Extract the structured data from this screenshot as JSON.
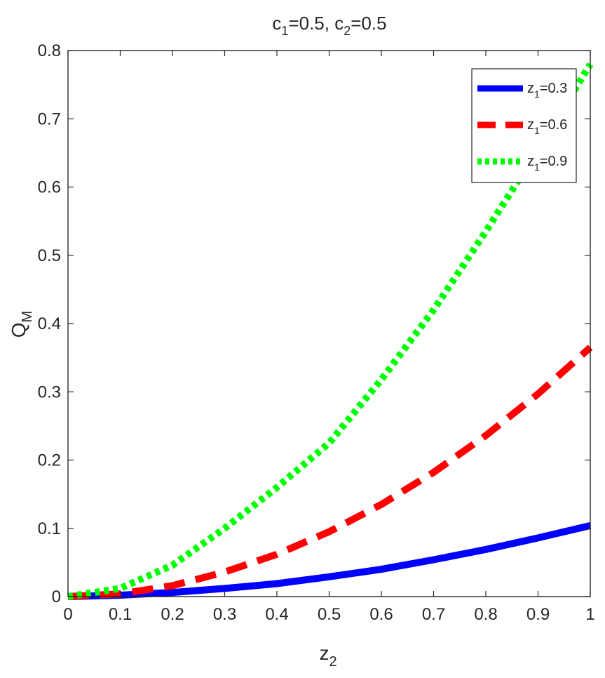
{
  "chart_data": {
    "type": "line",
    "title": {
      "main": "c",
      "s1": "1",
      "mid": "=0.5, c",
      "s2": "2",
      "tail": "=0.5"
    },
    "xlabel": {
      "main": "z",
      "sub": "2"
    },
    "ylabel": {
      "main": "Q",
      "sub": "M"
    },
    "xlim": [
      0,
      1
    ],
    "ylim": [
      0,
      0.8
    ],
    "xticks": [
      "0",
      "0.1",
      "0.2",
      "0.3",
      "0.4",
      "0.5",
      "0.6",
      "0.7",
      "0.8",
      "0.9",
      "1"
    ],
    "yticks": [
      "0",
      "0.1",
      "0.2",
      "0.3",
      "0.4",
      "0.5",
      "0.6",
      "0.7",
      "0.8"
    ],
    "grid": false,
    "legend_position": "top-right",
    "x": [
      0,
      0.1,
      0.2,
      0.3,
      0.4,
      0.5,
      0.6,
      0.7,
      0.8,
      0.9,
      1.0
    ],
    "series": [
      {
        "name": {
          "main": "z",
          "sub": "1",
          "tail": "=0.3"
        },
        "color": "#0000ff",
        "style": "solid",
        "values": [
          0,
          0.002,
          0.006,
          0.012,
          0.019,
          0.029,
          0.04,
          0.054,
          0.069,
          0.086,
          0.104
        ]
      },
      {
        "name": {
          "main": "z",
          "sub": "1",
          "tail": "=0.6"
        },
        "color": "#ff0000",
        "style": "dashed",
        "values": [
          0,
          0.004,
          0.016,
          0.036,
          0.062,
          0.095,
          0.135,
          0.182,
          0.236,
          0.297,
          0.365
        ]
      },
      {
        "name": {
          "main": "z",
          "sub": "1",
          "tail": "=0.9"
        },
        "color": "#00ff00",
        "style": "dotted",
        "values": [
          0,
          0.012,
          0.046,
          0.1,
          0.16,
          0.225,
          0.318,
          0.42,
          0.535,
          0.655,
          0.78
        ]
      }
    ]
  }
}
